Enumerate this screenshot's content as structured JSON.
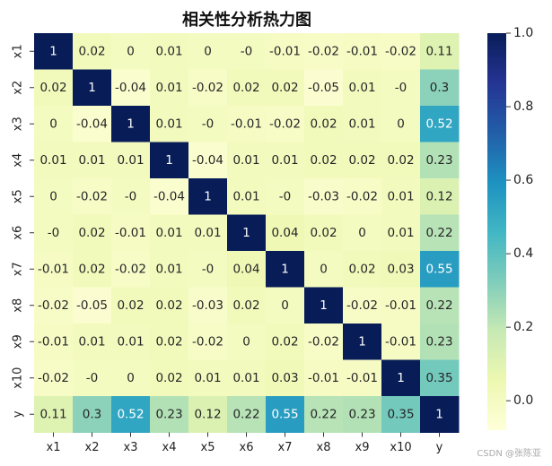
{
  "chart_data": {
    "type": "heatmap",
    "title": "相关性分析热力图",
    "labels": [
      "x1",
      "x2",
      "x3",
      "x4",
      "x5",
      "x6",
      "x7",
      "x8",
      "x9",
      "x10",
      "y"
    ],
    "matrix": [
      [
        1,
        0.02,
        0,
        0.01,
        0,
        0,
        -0.01,
        -0.02,
        -0.01,
        -0.02,
        0.11
      ],
      [
        0.02,
        1,
        -0.04,
        0.01,
        -0.02,
        0.02,
        0.02,
        -0.05,
        0.01,
        0,
        0.3
      ],
      [
        0,
        -0.04,
        1,
        0.01,
        0,
        -0.01,
        -0.02,
        0.02,
        0.01,
        0,
        0.52
      ],
      [
        0.01,
        0.01,
        0.01,
        1,
        -0.04,
        0.01,
        0.01,
        0.02,
        0.02,
        0.02,
        0.23
      ],
      [
        0,
        -0.02,
        0,
        -0.04,
        1,
        0.01,
        0,
        -0.03,
        -0.02,
        0.01,
        0.12
      ],
      [
        0,
        0.02,
        -0.01,
        0.01,
        0.01,
        1,
        0.04,
        0.02,
        0,
        0.01,
        0.22
      ],
      [
        -0.01,
        0.02,
        -0.02,
        0.01,
        0,
        0.04,
        1,
        0,
        0.02,
        0.03,
        0.55
      ],
      [
        -0.02,
        -0.05,
        0.02,
        0.02,
        -0.03,
        0.02,
        0,
        1,
        -0.02,
        -0.01,
        0.22
      ],
      [
        -0.01,
        0.01,
        0.01,
        0.02,
        -0.02,
        0,
        0.02,
        -0.02,
        1,
        -0.01,
        0.23
      ],
      [
        -0.02,
        0,
        0,
        0.02,
        0.01,
        0.01,
        0.03,
        -0.01,
        -0.01,
        1,
        0.35
      ],
      [
        0.11,
        0.3,
        0.52,
        0.23,
        0.12,
        0.22,
        0.55,
        0.22,
        0.23,
        0.35,
        1
      ]
    ],
    "colorbar": {
      "range": [
        -0.08,
        1.0
      ],
      "ticks": [
        "0.0",
        "0.2",
        "0.4",
        "0.6",
        "0.8",
        "1.0"
      ],
      "colormap": "YlGnBu"
    }
  },
  "watermark": "CSDN @张陈亚"
}
